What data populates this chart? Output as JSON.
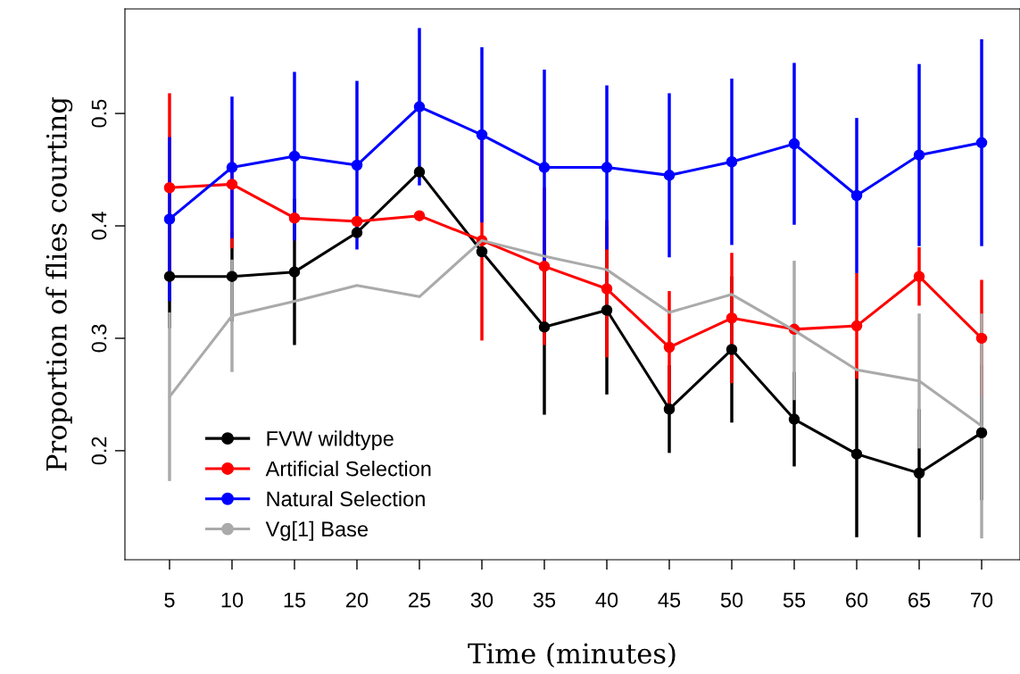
{
  "chart_data": {
    "type": "line",
    "xlabel": "Time (minutes)",
    "ylabel": "Proportion of flies courting",
    "x": [
      5,
      10,
      15,
      20,
      25,
      30,
      35,
      40,
      45,
      50,
      55,
      60,
      65,
      70
    ],
    "xlim": [
      1.43,
      73.07
    ],
    "ylim": [
      0.103,
      0.593
    ],
    "xticks": [
      5,
      10,
      15,
      20,
      25,
      30,
      35,
      40,
      45,
      50,
      55,
      60,
      65,
      70
    ],
    "yticks": [
      0.2,
      0.3,
      0.4,
      0.5
    ],
    "grid": false,
    "legend": "bottom left",
    "line_style": "solid",
    "series": [
      {
        "name": "FVW wildtype",
        "color": "#000000",
        "marker": "circle",
        "values": [
          0.355,
          0.355,
          0.359,
          0.394,
          0.448,
          0.377,
          0.31,
          0.325,
          0.237,
          0.29,
          0.228,
          0.197,
          0.18,
          0.216
        ],
        "errors": [
          0.046,
          0.04,
          0.065,
          null,
          null,
          null,
          0.078,
          0.075,
          0.039,
          0.065,
          0.042,
          0.074,
          0.057,
          0.06
        ]
      },
      {
        "name": "Artificial Selection",
        "color": "#ff0000",
        "marker": "circle",
        "values": [
          0.434,
          0.437,
          0.407,
          0.404,
          0.409,
          0.387,
          0.364,
          0.344,
          0.292,
          0.318,
          0.308,
          0.311,
          0.355,
          0.3
        ],
        "errors": [
          0.084,
          0.057,
          null,
          null,
          null,
          0.089,
          0.07,
          0.061,
          0.05,
          0.058,
          null,
          0.047,
          0.026,
          0.052
        ]
      },
      {
        "name": "Natural Selection",
        "color": "#0000ff",
        "marker": "circle",
        "values": [
          0.406,
          0.452,
          0.462,
          0.454,
          0.506,
          0.481,
          0.452,
          0.452,
          0.445,
          0.457,
          0.473,
          0.427,
          0.463,
          0.474
        ],
        "errors": [
          0.073,
          0.063,
          0.075,
          0.075,
          0.07,
          0.078,
          0.087,
          0.073,
          0.073,
          0.074,
          0.072,
          0.069,
          0.081,
          0.092
        ]
      },
      {
        "name": "Vg[1] Base",
        "color": "#aaaaaa",
        "marker": "none",
        "values": [
          0.248,
          0.32,
          0.333,
          0.347,
          0.337,
          0.387,
          0.373,
          0.361,
          0.323,
          0.339,
          0.307,
          0.272,
          0.262,
          0.222
        ],
        "errors": [
          0.075,
          0.05,
          null,
          null,
          null,
          null,
          null,
          null,
          null,
          null,
          0.062,
          null,
          0.06,
          0.1
        ]
      }
    ]
  }
}
